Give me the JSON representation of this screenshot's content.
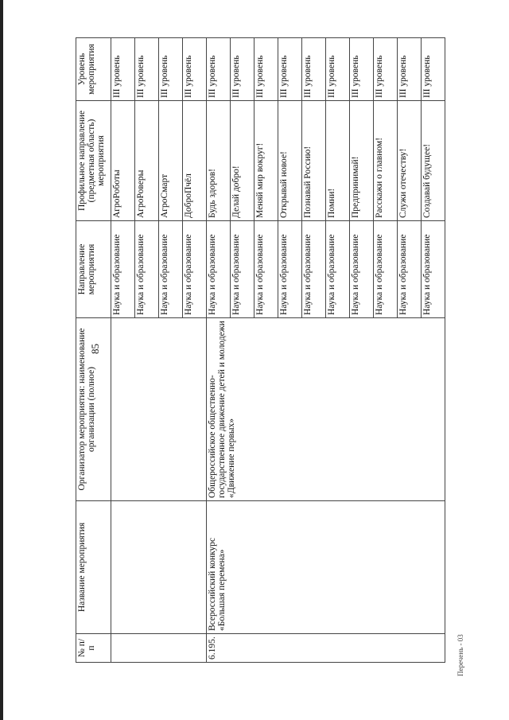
{
  "page_number": "85",
  "footer": "Перечень - 03",
  "table": {
    "headers": [
      "№ п/п",
      "Название мероприятия",
      "Организатор мероприятия: наименование организации (полное)",
      "Направление мероприятия",
      "Профильное направление (предметная область) мероприятия",
      "Уровень мероприятия"
    ],
    "continued_rows": [
      {
        "direction": "Наука и образование",
        "profile": "АгроРоботы",
        "level": "III уровень"
      },
      {
        "direction": "Наука и образование",
        "profile": "АгроРоверы",
        "level": "III уровень"
      },
      {
        "direction": "Наука и образование",
        "profile": "АгроСмарт",
        "level": "III уровень"
      },
      {
        "direction": "Наука и образование",
        "profile": "ДоброПчёл",
        "level": "III уровень"
      }
    ],
    "entry": {
      "number": "6.195.",
      "name": "Всероссийский конкурс «Большая перемена»",
      "organizer": "Общероссийское общественно-государственное движение детей и молодежи «Движение первых»",
      "rows": [
        {
          "direction": "Наука и образование",
          "profile": "Будь здоров!",
          "level": "III уровень"
        },
        {
          "direction": "Наука и образование",
          "profile": "Делай добро!",
          "level": "III уровень"
        },
        {
          "direction": "Наука и образование",
          "profile": "Меняй мир вокруг!",
          "level": "III уровень"
        },
        {
          "direction": "Наука и образование",
          "profile": "Открывай новое!",
          "level": "III уровень"
        },
        {
          "direction": "Наука и образование",
          "profile": "Познавай Россию!",
          "level": "III уровень"
        },
        {
          "direction": "Наука и образование",
          "profile": "Помни!",
          "level": "III уровень"
        },
        {
          "direction": "Наука и образование",
          "profile": "Предпринимай!",
          "level": "III уровень"
        },
        {
          "direction": "Наука и образование",
          "profile": "Расскажи о главном!",
          "level": "III уровень"
        },
        {
          "direction": "Наука и образование",
          "profile": "Служи отечеству!",
          "level": "III уровень"
        },
        {
          "direction": "Наука и образование",
          "profile": "Создавай будущее!",
          "level": "III уровень"
        }
      ]
    }
  }
}
